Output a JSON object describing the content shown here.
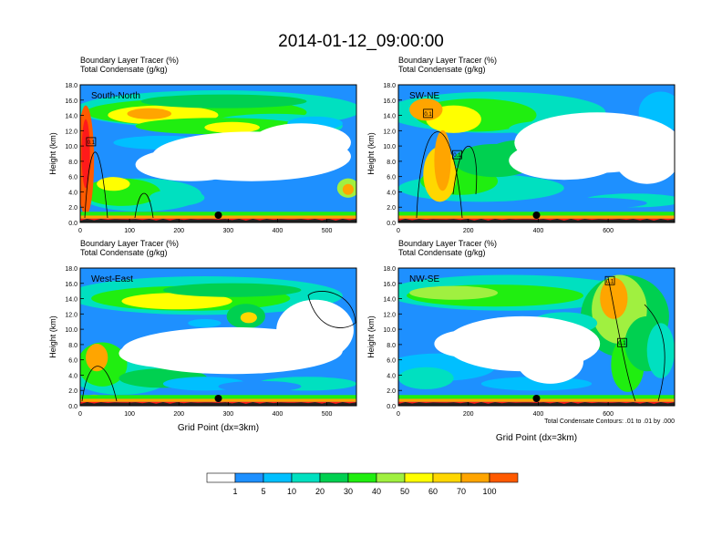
{
  "main_title": "2014-01-12_09:00:00",
  "colors": {
    "contour_levels": [
      "#ffffff",
      "#1e90ff",
      "#00bfff",
      "#00e0c0",
      "#00d050",
      "#20ee10",
      "#a0f040",
      "#ffff00",
      "#ffd700",
      "#ffa500",
      "#ff5a00",
      "#ff1a1a"
    ],
    "terrain": "#222222",
    "marker": "#000000"
  },
  "colorbar": {
    "tick_labels": [
      "1",
      "5",
      "10",
      "20",
      "30",
      "40",
      "50",
      "60",
      "70",
      "100"
    ]
  },
  "chart_data": [
    {
      "type": "heatmap",
      "panel_label": "South-North",
      "title_line1": "Boundary Layer Tracer    (%)",
      "title_line2": "Total Condensate    (g/kg)",
      "ylabel": "Height (km)",
      "xlabel": "",
      "xlim": [
        0,
        560
      ],
      "ylim": [
        0,
        18
      ],
      "x_ticks": [
        "0",
        "100",
        "200",
        "300",
        "400",
        "500"
      ],
      "x_tick_values": [
        0,
        100,
        200,
        300,
        400,
        500
      ],
      "y_ticks": [
        "0.0",
        "2.0",
        "4.0",
        "6.0",
        "8.0",
        "10.0",
        "12.0",
        "14.0",
        "16.0",
        "18.0"
      ],
      "marker_x": 280,
      "box_labels": [
        {
          "text": "0.1",
          "x": 22,
          "y": 10.5
        }
      ]
    },
    {
      "type": "heatmap",
      "panel_label": "SW-NE",
      "title_line1": "Boundary Layer Tracer    (%)",
      "title_line2": "Total Condensate    (g/kg)",
      "ylabel": "Height (km)",
      "xlabel": "",
      "xlim": [
        0,
        790
      ],
      "ylim": [
        0,
        18
      ],
      "x_ticks": [
        "0",
        "200",
        "400",
        "600"
      ],
      "x_tick_values": [
        0,
        200,
        400,
        600
      ],
      "y_ticks": [
        "0.0",
        "2.0",
        "4.0",
        "6.0",
        "8.0",
        "10.0",
        "12.0",
        "14.0",
        "16.0",
        "18.0"
      ],
      "marker_x": 395,
      "box_labels": [
        {
          "text": "0.1",
          "x": 85,
          "y": 14.2
        },
        {
          "text": "0.1",
          "x": 168,
          "y": 8.8
        }
      ]
    },
    {
      "type": "heatmap",
      "panel_label": "West-East",
      "title_line1": "Boundary Layer Tracer    (%)",
      "title_line2": "Total Condensate    (g/kg)",
      "ylabel": "Height (km)",
      "xlabel": "Grid Point (dx=3km)",
      "xlim": [
        0,
        560
      ],
      "ylim": [
        0,
        18
      ],
      "x_ticks": [
        "0",
        "100",
        "200",
        "300",
        "400",
        "500"
      ],
      "x_tick_values": [
        0,
        100,
        200,
        300,
        400,
        500
      ],
      "y_ticks": [
        "0.0",
        "2.0",
        "4.0",
        "6.0",
        "8.0",
        "10.0",
        "12.0",
        "14.0",
        "16.0",
        "18.0"
      ],
      "marker_x": 280,
      "box_labels": []
    },
    {
      "type": "heatmap",
      "panel_label": "NW-SE",
      "title_line1": "Boundary Layer Tracer    (%)",
      "title_line2": "Total Condensate    (g/kg)",
      "ylabel": "Height (km)",
      "xlabel": "Grid Point (dx=3km)",
      "xlim": [
        0,
        790
      ],
      "ylim": [
        0,
        18
      ],
      "x_ticks": [
        "0",
        "200",
        "400",
        "600"
      ],
      "x_tick_values": [
        0,
        200,
        400,
        600
      ],
      "y_ticks": [
        "0.0",
        "2.0",
        "4.0",
        "6.0",
        "8.0",
        "10.0",
        "12.0",
        "14.0",
        "16.0",
        "18.0"
      ],
      "marker_x": 395,
      "box_labels": [
        {
          "text": "0.1",
          "x": 605,
          "y": 16.3
        },
        {
          "text": "0.1",
          "x": 640,
          "y": 8.2
        }
      ],
      "contour_note": "Total Condensate Contours: .01 to .01 by .000"
    }
  ]
}
